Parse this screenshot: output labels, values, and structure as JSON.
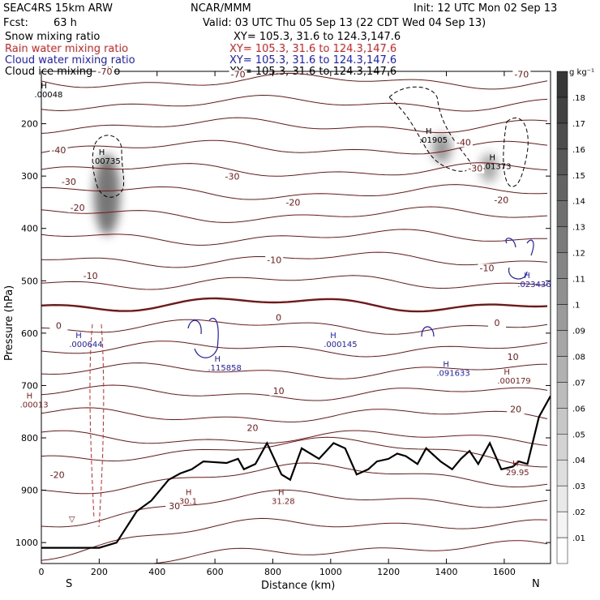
{
  "header": {
    "model": "SEAC4RS 15km ARW",
    "org": "NCAR/MMM",
    "init": "Init: 12 UTC Mon 02 Sep 13",
    "fcst_label": "Fcst:",
    "fcst_value": "63 h",
    "valid": "Valid: 03 UTC Thu 05 Sep 13 (22 CDT Wed 04 Sep 13)"
  },
  "fields": [
    {
      "name": "Snow mixing ratio",
      "color": "#000000",
      "xy": "XY= 105.3, 31.6 to 124.3,147.6"
    },
    {
      "name": "Rain water mixing ratio",
      "color": "#e02020",
      "xy": "XY= 105.3, 31.6 to 124.3,147.6"
    },
    {
      "name": "Cloud water mixing ratio",
      "color": "#1a1ad0",
      "xy": "XY= 105.3, 31.6 to 124.3,147.6"
    },
    {
      "name": "Cloud ice mixing ratio",
      "color": "#000000",
      "xy": "XY= 105.3, 31.6 to 124.3,147.6"
    }
  ],
  "colors": {
    "temperature": "#7a1414",
    "terrain": "#000000",
    "rain": "#e02020",
    "cloud_water": "#1a1ad0",
    "snow": "#000000"
  },
  "chart_data": {
    "type": "cross-section",
    "xlabel": "Distance (km)",
    "ylabel": "Pressure (hPa)",
    "xlim": [
      0,
      1760
    ],
    "ylim": [
      1040,
      100
    ],
    "x_ticks": [
      0,
      200,
      400,
      600,
      800,
      1000,
      1200,
      1400,
      1600
    ],
    "y_ticks": [
      200,
      300,
      400,
      500,
      600,
      700,
      800,
      900,
      1000
    ],
    "axis_ends": {
      "left": "S",
      "right": "N"
    },
    "colorbar": {
      "unit": "g kg⁻¹",
      "levels": [
        ".01",
        ".02",
        ".03",
        ".04",
        ".05",
        ".06",
        ".07",
        ".08",
        ".09",
        ".1",
        ".11",
        ".12",
        ".13",
        ".14",
        ".15",
        ".16",
        ".17",
        ".18"
      ]
    },
    "temperature_contour_labels": [
      {
        "x": 220,
        "p": 105,
        "text": "-70"
      },
      {
        "x": 680,
        "p": 110,
        "text": "-70"
      },
      {
        "x": 1660,
        "p": 110,
        "text": "-70"
      },
      {
        "x": 60,
        "p": 255,
        "text": "-40"
      },
      {
        "x": 1460,
        "p": 240,
        "text": "-40"
      },
      {
        "x": 95,
        "p": 315,
        "text": "-30"
      },
      {
        "x": 660,
        "p": 305,
        "text": "-30"
      },
      {
        "x": 1500,
        "p": 290,
        "text": "-30"
      },
      {
        "x": 125,
        "p": 365,
        "text": "-20"
      },
      {
        "x": 870,
        "p": 355,
        "text": "-20"
      },
      {
        "x": 1590,
        "p": 350,
        "text": "-20"
      },
      {
        "x": 170,
        "p": 495,
        "text": "-10"
      },
      {
        "x": 805,
        "p": 465,
        "text": "-10"
      },
      {
        "x": 1540,
        "p": 480,
        "text": "-10"
      },
      {
        "x": 60,
        "p": 590,
        "text": "0"
      },
      {
        "x": 820,
        "p": 575,
        "text": "0"
      },
      {
        "x": 1575,
        "p": 585,
        "text": "0"
      },
      {
        "x": 1630,
        "p": 650,
        "text": "10"
      },
      {
        "x": 820,
        "p": 715,
        "text": "10"
      },
      {
        "x": 1640,
        "p": 750,
        "text": "20"
      },
      {
        "x": 730,
        "p": 785,
        "text": "20"
      },
      {
        "x": 55,
        "p": 875,
        "text": "-20"
      },
      {
        "x": 460,
        "p": 935,
        "text": "30"
      }
    ],
    "maxima": [
      {
        "x": 60,
        "p": 148,
        "text": ".00048",
        "color": "#000000"
      },
      {
        "x": 260,
        "p": 275,
        "text": ".00735",
        "color": "#000000"
      },
      {
        "x": 1390,
        "p": 235,
        "text": ".01905",
        "color": "#000000"
      },
      {
        "x": 1610,
        "p": 285,
        "text": ".01373",
        "color": "#000000"
      },
      {
        "x": 1730,
        "p": 510,
        "text": ".023436",
        "color": "#1a1ad0"
      },
      {
        "x": 180,
        "p": 625,
        "text": ".000644",
        "color": "#1a1ad0"
      },
      {
        "x": 660,
        "p": 670,
        "text": ".115858",
        "color": "#1a1ad0"
      },
      {
        "x": 1060,
        "p": 625,
        "text": ".000145",
        "color": "#1a1ad0"
      },
      {
        "x": 1450,
        "p": 680,
        "text": ".091633",
        "color": "#1a1ad0"
      },
      {
        "x": 1660,
        "p": 695,
        "text": ".000179",
        "color": "#8b1a1a"
      },
      {
        "x": 10,
        "p": 740,
        "text": ".00013",
        "color": "#8b1a1a"
      },
      {
        "x": 560,
        "p": 925,
        "text": "30.1",
        "color": "#8b1a1a"
      },
      {
        "x": 880,
        "p": 925,
        "text": "31.28",
        "color": "#8b1a1a"
      },
      {
        "x": 1690,
        "p": 870,
        "text": "29.95",
        "color": "#8b1a1a"
      }
    ],
    "extra_labels": [
      {
        "x": 95,
        "p": 960,
        "text": "▽",
        "color": "#8b1a1a"
      }
    ]
  }
}
